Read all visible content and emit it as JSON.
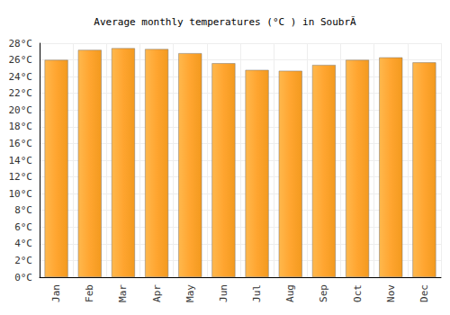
{
  "chart_data": {
    "type": "bar",
    "title": "Average monthly temperatures (°C ) in SoubrÃ",
    "categories": [
      "Jan",
      "Feb",
      "Mar",
      "Apr",
      "May",
      "Jun",
      "Jul",
      "Aug",
      "Sep",
      "Oct",
      "Nov",
      "Dec"
    ],
    "values": [
      26.0,
      27.2,
      27.4,
      27.3,
      26.8,
      25.6,
      24.8,
      24.7,
      25.4,
      26.0,
      26.3,
      25.7
    ],
    "color": "#ffa530",
    "ylim": [
      0,
      28
    ],
    "yticks": [
      {
        "value": 0,
        "label": "0°C"
      },
      {
        "value": 2,
        "label": "2°C"
      },
      {
        "value": 4,
        "label": "4°C"
      },
      {
        "value": 6,
        "label": "6°C"
      },
      {
        "value": 8,
        "label": "8°C"
      },
      {
        "value": 10,
        "label": "10°C"
      },
      {
        "value": 12,
        "label": "12°C"
      },
      {
        "value": 14,
        "label": "14°C"
      },
      {
        "value": 16,
        "label": "16°C"
      },
      {
        "value": 18,
        "label": "18°C"
      },
      {
        "value": 20,
        "label": "20°C"
      },
      {
        "value": 22,
        "label": "22°C"
      },
      {
        "value": 24,
        "label": "24°C"
      },
      {
        "value": 26,
        "label": "26°C"
      },
      {
        "value": 28,
        "label": "28°C"
      }
    ],
    "grid": true
  }
}
